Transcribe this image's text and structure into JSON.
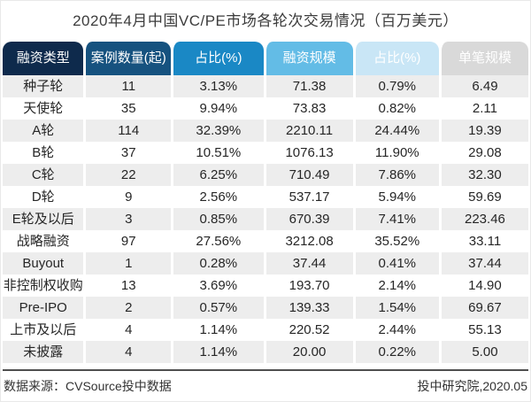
{
  "title": "2020年4月中国VC/PE市场各轮次交易情况（百万美元）",
  "table": {
    "columns": [
      "融资类型",
      "案例数量(起)",
      "占比(%)",
      "融资规模",
      "占比(%)",
      "单笔规模"
    ],
    "header_colors": [
      "#0e2a4c",
      "#16527f",
      "#1a88c5",
      "#63bce6",
      "#c9e6f6",
      "#d9d9d9"
    ],
    "rows": [
      [
        "种子轮",
        "11",
        "3.13%",
        "71.38",
        "0.79%",
        "6.49"
      ],
      [
        "天使轮",
        "35",
        "9.94%",
        "73.83",
        "0.82%",
        "2.11"
      ],
      [
        "A轮",
        "114",
        "32.39%",
        "2210.11",
        "24.44%",
        "19.39"
      ],
      [
        "B轮",
        "37",
        "10.51%",
        "1076.13",
        "11.90%",
        "29.08"
      ],
      [
        "C轮",
        "22",
        "6.25%",
        "710.49",
        "7.86%",
        "32.30"
      ],
      [
        "D轮",
        "9",
        "2.56%",
        "537.17",
        "5.94%",
        "59.69"
      ],
      [
        "E轮及以后",
        "3",
        "0.85%",
        "670.39",
        "7.41%",
        "223.46"
      ],
      [
        "战略融资",
        "97",
        "27.56%",
        "3212.08",
        "35.52%",
        "33.11"
      ],
      [
        "Buyout",
        "1",
        "0.28%",
        "37.44",
        "0.41%",
        "37.44"
      ],
      [
        "非控制权收购",
        "13",
        "3.69%",
        "193.70",
        "2.14%",
        "14.90"
      ],
      [
        "Pre-IPO",
        "2",
        "0.57%",
        "139.33",
        "1.54%",
        "69.67"
      ],
      [
        "上市及以后",
        "4",
        "1.14%",
        "220.52",
        "2.44%",
        "55.13"
      ],
      [
        "未披露",
        "4",
        "1.14%",
        "20.00",
        "0.22%",
        "5.00"
      ]
    ]
  },
  "footer": {
    "source": "数据来源：CVSource投中数据",
    "credit": "投中研究院,2020.05"
  },
  "colors": {
    "stripe": "#ededed",
    "rule": "#4f4f4f",
    "header_text": "#ffffff",
    "body_text": "#262626"
  }
}
